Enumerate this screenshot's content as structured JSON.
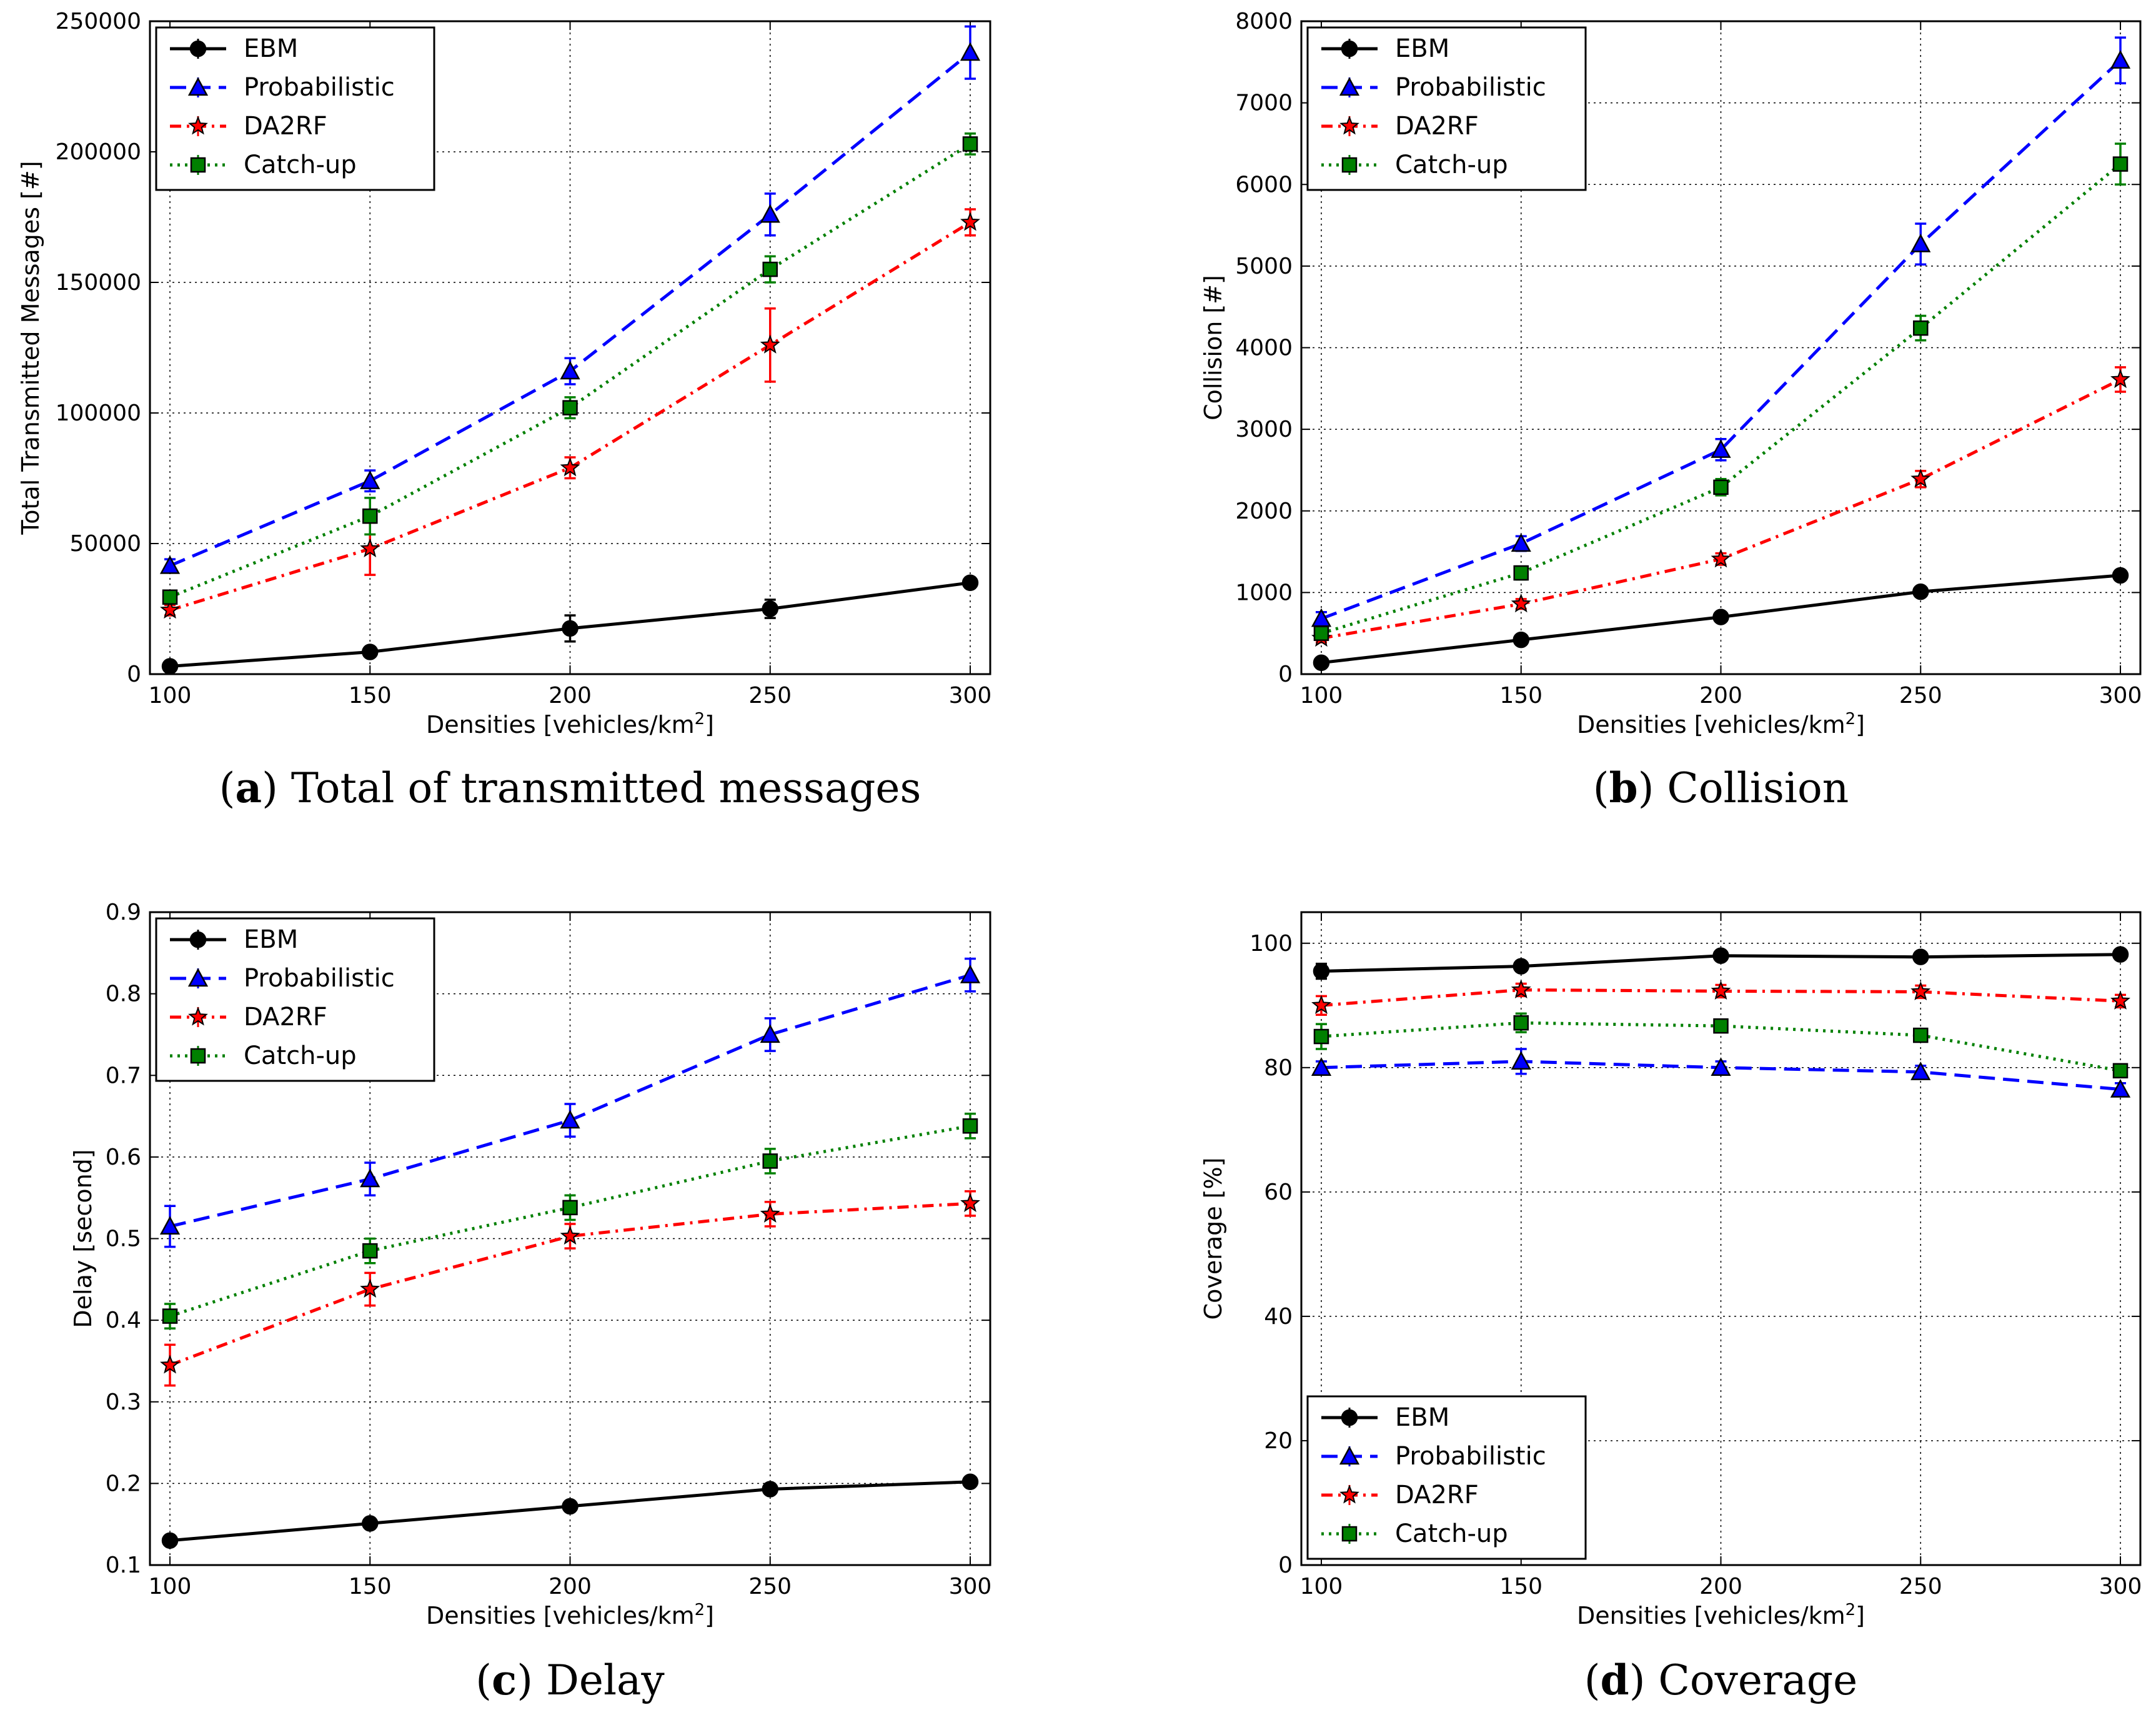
{
  "series_styles": [
    {
      "name": "EBM",
      "color": "#000000",
      "marker": "circle",
      "dash": "solid"
    },
    {
      "name": "Probabilistic",
      "color": "#0000ff",
      "marker": "triangle",
      "dash": "dashed"
    },
    {
      "name": "DA2RF",
      "color": "#ff0000",
      "marker": "star",
      "dash": "dashdot"
    },
    {
      "name": "Catch-up",
      "color": "#008000",
      "marker": "square",
      "dash": "dotted"
    }
  ],
  "chart_data": [
    {
      "type": "line",
      "id": "a",
      "caption_letter": "a",
      "caption_text": "Total of transmitted messages",
      "xlabel": "Densities [vehicles/km",
      "xlabel_sup": "2",
      "xlabel_end": "]",
      "ylabel": "Total Transmitted Messages [#]",
      "x": [
        100,
        150,
        200,
        250,
        300
      ],
      "xlim": [
        95,
        305
      ],
      "ylim": [
        0,
        250000
      ],
      "xticks": [
        100,
        150,
        200,
        250,
        300
      ],
      "yticks": [
        0,
        50000,
        100000,
        150000,
        200000,
        250000
      ],
      "grid": true,
      "legend": "top-left",
      "series": [
        {
          "name": "EBM",
          "values": [
            3000,
            8500,
            17500,
            25000,
            35000
          ],
          "err": [
            1000,
            1500,
            5000,
            3500,
            2000
          ]
        },
        {
          "name": "Probabilistic",
          "values": [
            41500,
            74000,
            116000,
            176000,
            238000
          ],
          "err": [
            2500,
            4000,
            5000,
            8000,
            10000
          ]
        },
        {
          "name": "DA2RF",
          "values": [
            24500,
            48000,
            79000,
            126000,
            173000
          ],
          "err": [
            2000,
            10000,
            4000,
            14000,
            5000
          ]
        },
        {
          "name": "Catch-up",
          "values": [
            29500,
            60500,
            102000,
            155000,
            203000
          ],
          "err": [
            2500,
            7000,
            4000,
            5000,
            4000
          ]
        }
      ]
    },
    {
      "type": "line",
      "id": "b",
      "caption_letter": "b",
      "caption_text": "Collision",
      "xlabel": "Densities [vehicles/km",
      "xlabel_sup": "2",
      "xlabel_end": "]",
      "ylabel": "Collision [#]",
      "x": [
        100,
        150,
        200,
        250,
        300
      ],
      "xlim": [
        95,
        305
      ],
      "ylim": [
        0,
        8000
      ],
      "xticks": [
        100,
        150,
        200,
        250,
        300
      ],
      "yticks": [
        0,
        1000,
        2000,
        3000,
        4000,
        5000,
        6000,
        7000,
        8000
      ],
      "grid": true,
      "legend": "top-left",
      "series": [
        {
          "name": "EBM",
          "values": [
            140,
            420,
            700,
            1010,
            1210
          ],
          "err": [
            40,
            40,
            50,
            50,
            50
          ]
        },
        {
          "name": "Probabilistic",
          "values": [
            680,
            1600,
            2750,
            5270,
            7520
          ],
          "err": [
            80,
            90,
            130,
            250,
            280
          ]
        },
        {
          "name": "DA2RF",
          "values": [
            440,
            860,
            1410,
            2390,
            3610
          ],
          "err": [
            50,
            60,
            70,
            100,
            150
          ]
        },
        {
          "name": "Catch-up",
          "values": [
            500,
            1240,
            2290,
            4240,
            6250
          ],
          "err": [
            70,
            80,
            100,
            150,
            250
          ]
        }
      ]
    },
    {
      "type": "line",
      "id": "c",
      "caption_letter": "c",
      "caption_text": "Delay",
      "xlabel": "Densities [vehicles/km",
      "xlabel_sup": "2",
      "xlabel_end": "]",
      "ylabel": "Delay [second]",
      "x": [
        100,
        150,
        200,
        250,
        300
      ],
      "xlim": [
        95,
        305
      ],
      "ylim": [
        0.1,
        0.9
      ],
      "xticks": [
        100,
        150,
        200,
        250,
        300
      ],
      "yticks": [
        0.1,
        0.2,
        0.3,
        0.4,
        0.5,
        0.6,
        0.7,
        0.8,
        0.9
      ],
      "grid": true,
      "legend": "top-left",
      "series": [
        {
          "name": "EBM",
          "values": [
            0.13,
            0.151,
            0.172,
            0.193,
            0.202
          ],
          "err": [
            0.005,
            0.005,
            0.005,
            0.005,
            0.005
          ]
        },
        {
          "name": "Probabilistic",
          "values": [
            0.515,
            0.573,
            0.645,
            0.75,
            0.823
          ],
          "err": [
            0.025,
            0.02,
            0.02,
            0.02,
            0.02
          ]
        },
        {
          "name": "DA2RF",
          "values": [
            0.345,
            0.438,
            0.503,
            0.53,
            0.543
          ],
          "err": [
            0.025,
            0.02,
            0.015,
            0.015,
            0.015
          ]
        },
        {
          "name": "Catch-up",
          "values": [
            0.405,
            0.485,
            0.538,
            0.595,
            0.638
          ],
          "err": [
            0.015,
            0.015,
            0.015,
            0.015,
            0.015
          ]
        }
      ]
    },
    {
      "type": "line",
      "id": "d",
      "caption_letter": "d",
      "caption_text": "Coverage",
      "xlabel": "Densities [vehicles/km",
      "xlabel_sup": "2",
      "xlabel_end": "]",
      "ylabel": "Coverage [%]",
      "x": [
        100,
        150,
        200,
        250,
        300
      ],
      "xlim": [
        95,
        305
      ],
      "ylim": [
        0,
        105
      ],
      "xticks": [
        100,
        150,
        200,
        250,
        300
      ],
      "yticks": [
        0,
        20,
        40,
        60,
        80,
        100
      ],
      "grid": true,
      "legend": "bottom-left",
      "series": [
        {
          "name": "EBM",
          "values": [
            95.5,
            96.3,
            98,
            97.8,
            98.2
          ],
          "err": [
            1.2,
            0.8,
            0.5,
            0.5,
            0.4
          ]
        },
        {
          "name": "Probabilistic",
          "values": [
            80,
            81,
            80,
            79.3,
            76.5
          ],
          "err": [
            1.0,
            2.0,
            1.0,
            1.0,
            1.0
          ]
        },
        {
          "name": "DA2RF",
          "values": [
            90,
            92.5,
            92.3,
            92.2,
            90.7
          ],
          "err": [
            1.5,
            1.0,
            1.0,
            1.0,
            1.0
          ]
        },
        {
          "name": "Catch-up",
          "values": [
            85,
            87.2,
            86.7,
            85.2,
            79.5
          ],
          "err": [
            2.0,
            1.5,
            1.0,
            1.0,
            1.0
          ]
        }
      ]
    }
  ]
}
